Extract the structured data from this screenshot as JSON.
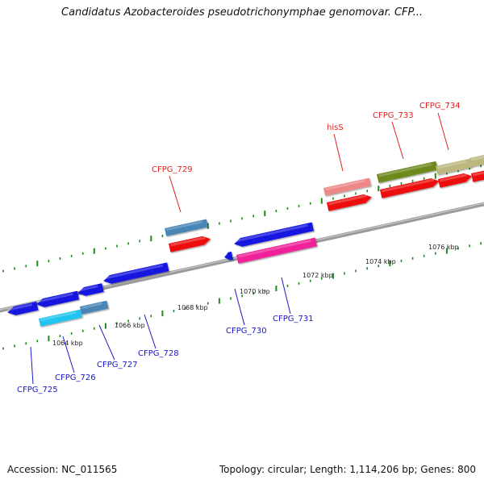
{
  "title": "Candidatus Azobacteroides pseudotrichonymphae genomovar. CFP...",
  "footer": {
    "accession": "Accession: NC_011565",
    "summary": "Topology: circular; Length: 1,114,206 bp; Genes: 800"
  },
  "scale_labels": [
    "1064 kbp",
    "1066 kbp",
    "1068 kbp",
    "1070 kbp",
    "1072 kbp",
    "1074 kbp",
    "1076 kbp"
  ],
  "colors": {
    "backbone": "#8c8c8c",
    "tick": "#1a8a1a",
    "forward_label": "#e02020",
    "reverse_label": "#1818c8"
  },
  "genes": [
    {
      "id": "g1",
      "strand": "reverse",
      "track": "cds",
      "color": "#1818e0",
      "label": ""
    },
    {
      "id": "g2",
      "strand": "reverse",
      "track": "cds",
      "color": "#1818e0",
      "label": ""
    },
    {
      "id": "g3",
      "strand": "reverse",
      "track": "cds",
      "color": "#1818e0",
      "label": ""
    },
    {
      "id": "g4",
      "strand": "reverse",
      "track": "cds",
      "color": "#1818e0",
      "label": ""
    },
    {
      "id": "g5",
      "strand": "reverse",
      "track": "cog",
      "color": "#22c4f0",
      "label": "CFPG_725"
    },
    {
      "id": "g6",
      "strand": "reverse",
      "track": "cog",
      "color": "#4a86b8",
      "label": "CFPG_726"
    },
    {
      "id": "g7",
      "strand": "reverse",
      "track": "cds",
      "color": "#1818e0",
      "label": "CFPG_727"
    },
    {
      "id": "g8",
      "strand": "reverse",
      "track": "cds",
      "color": "#1818e0",
      "label": "CFPG_728"
    },
    {
      "id": "g9",
      "strand": "reverse",
      "track": "cds",
      "color": "#1818e0",
      "label": "CFPG_730"
    },
    {
      "id": "g10",
      "strand": "reverse",
      "track": "cds",
      "color": "#1818e0",
      "label": ""
    },
    {
      "id": "g11",
      "strand": "reverse",
      "track": "cog",
      "color": "#f0209a",
      "label": "CFPG_731"
    },
    {
      "id": "g12",
      "strand": "forward",
      "track": "cog",
      "color": "#4a86b8",
      "label": "CFPG_729"
    },
    {
      "id": "g13",
      "strand": "forward",
      "track": "cds",
      "color": "#ee1010",
      "label": ""
    },
    {
      "id": "g14",
      "strand": "forward",
      "track": "cog",
      "color": "#ee8888",
      "label": "hisS"
    },
    {
      "id": "g15",
      "strand": "forward",
      "track": "cds",
      "color": "#ee1010",
      "label": ""
    },
    {
      "id": "g16",
      "strand": "forward",
      "track": "cog",
      "color": "#6e8a1e",
      "label": "CFPG_733"
    },
    {
      "id": "g17",
      "strand": "forward",
      "track": "cds",
      "color": "#ee1010",
      "label": ""
    },
    {
      "id": "g18",
      "strand": "forward",
      "track": "cog",
      "color": "#bdb880",
      "label": "CFPG_734"
    },
    {
      "id": "g19",
      "strand": "forward",
      "track": "cds",
      "color": "#ee1010",
      "label": ""
    },
    {
      "id": "g20",
      "strand": "forward",
      "track": "cog",
      "color": "#bdb880",
      "label": ""
    },
    {
      "id": "g21",
      "strand": "forward",
      "track": "cds",
      "color": "#ee1010",
      "label": ""
    }
  ]
}
